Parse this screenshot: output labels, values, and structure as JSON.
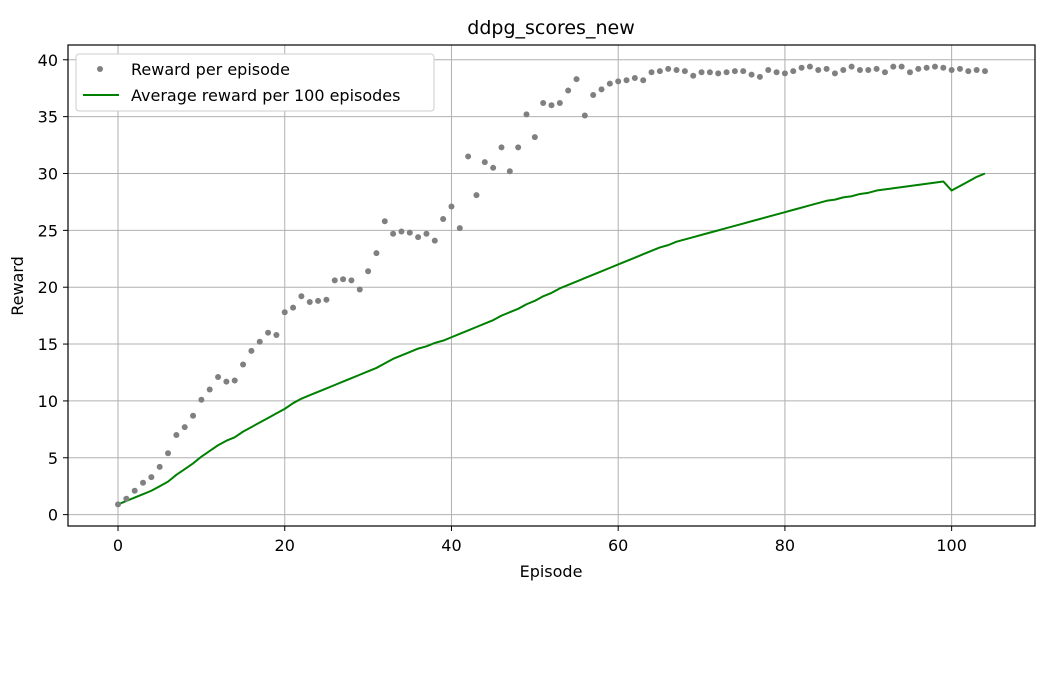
{
  "chart_data": {
    "type": "scatter",
    "title": "ddpg_scores_new",
    "xlabel": "Episode",
    "ylabel": "Reward",
    "xlim": [
      -6,
      110
    ],
    "ylim": [
      -1,
      41.3
    ],
    "grid": true,
    "legend_position": "top-left",
    "x_ticks": [
      {
        "value": 0,
        "label": "0"
      },
      {
        "value": 20,
        "label": "20"
      },
      {
        "value": 40,
        "label": "40"
      },
      {
        "value": 60,
        "label": "60"
      },
      {
        "value": 80,
        "label": "80"
      },
      {
        "value": 100,
        "label": "100"
      }
    ],
    "y_ticks": [
      {
        "value": 0,
        "label": "0"
      },
      {
        "value": 5,
        "label": "5"
      },
      {
        "value": 10,
        "label": "10"
      },
      {
        "value": 15,
        "label": "15"
      },
      {
        "value": 20,
        "label": "20"
      },
      {
        "value": 25,
        "label": "25"
      },
      {
        "value": 30,
        "label": "30"
      },
      {
        "value": 35,
        "label": "35"
      },
      {
        "value": 40,
        "label": "40"
      }
    ],
    "series": [
      {
        "name": "Reward per episode",
        "kind": "scatter",
        "color": "#808080",
        "values": [
          0.9,
          1.4,
          2.1,
          2.8,
          3.3,
          4.2,
          5.4,
          7.0,
          7.7,
          8.7,
          10.1,
          11.0,
          12.1,
          11.7,
          11.8,
          13.2,
          14.4,
          15.2,
          16.0,
          15.8,
          17.8,
          18.2,
          19.2,
          18.7,
          18.8,
          18.9,
          20.6,
          20.7,
          20.6,
          19.8,
          21.4,
          23.0,
          25.8,
          24.7,
          24.9,
          24.8,
          24.4,
          24.7,
          24.1,
          26.0,
          27.1,
          25.2,
          31.5,
          28.1,
          31.0,
          30.5,
          32.3,
          30.2,
          32.3,
          35.2,
          33.2,
          36.2,
          36.0,
          36.2,
          37.3,
          38.3,
          35.1,
          36.9,
          37.4,
          37.9,
          38.1,
          38.2,
          38.4,
          38.2,
          38.9,
          39.0,
          39.2,
          39.1,
          39.0,
          38.6,
          38.9,
          38.9,
          38.8,
          38.9,
          39.0,
          39.0,
          38.7,
          38.5,
          39.1,
          38.9,
          38.8,
          39.0,
          39.3,
          39.4,
          39.1,
          39.2,
          38.8,
          39.1,
          39.4,
          39.1,
          39.1,
          39.2,
          38.9,
          39.4,
          39.4,
          38.9,
          39.2,
          39.3,
          39.4,
          39.3,
          39.1,
          39.2,
          39.0,
          39.1,
          39.0
        ]
      },
      {
        "name": "Average reward per 100 episodes",
        "kind": "line",
        "color": "#008000",
        "values": [
          0.9,
          1.2,
          1.5,
          1.8,
          2.1,
          2.5,
          2.9,
          3.5,
          4.0,
          4.5,
          5.1,
          5.6,
          6.1,
          6.5,
          6.8,
          7.3,
          7.7,
          8.1,
          8.5,
          8.9,
          9.3,
          9.8,
          10.2,
          10.5,
          10.8,
          11.1,
          11.4,
          11.7,
          12.0,
          12.3,
          12.6,
          12.9,
          13.3,
          13.7,
          14.0,
          14.3,
          14.6,
          14.8,
          15.1,
          15.3,
          15.6,
          15.9,
          16.2,
          16.5,
          16.8,
          17.1,
          17.5,
          17.8,
          18.1,
          18.5,
          18.8,
          19.2,
          19.5,
          19.9,
          20.2,
          20.5,
          20.8,
          21.1,
          21.4,
          21.7,
          22.0,
          22.3,
          22.6,
          22.9,
          23.2,
          23.5,
          23.7,
          24.0,
          24.2,
          24.4,
          24.6,
          24.8,
          25.0,
          25.2,
          25.4,
          25.6,
          25.8,
          26.0,
          26.2,
          26.4,
          26.6,
          26.8,
          27.0,
          27.2,
          27.4,
          27.6,
          27.7,
          27.9,
          28.0,
          28.2,
          28.3,
          28.5,
          28.6,
          28.7,
          28.8,
          28.9,
          29.0,
          29.1,
          29.2,
          29.3,
          28.5,
          28.9,
          29.3,
          29.7,
          30.0
        ]
      }
    ]
  }
}
